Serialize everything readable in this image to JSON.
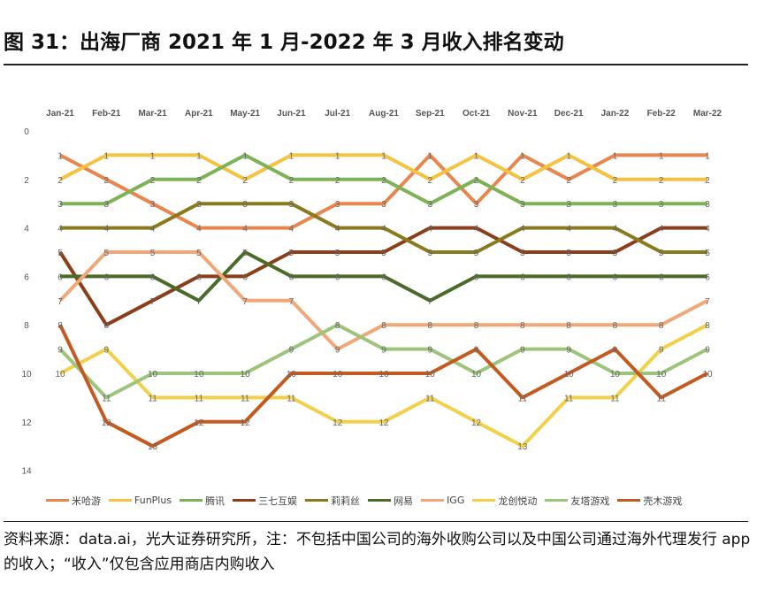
{
  "title": "图 31：出海厂商 2021 年 1 月-2022 年 3 月收入排名变动",
  "source": "资料来源：data.ai，光大证券研究所，注：不包括中国公司的海外收购公司以及中国公司通过海外代理发行 app 的收入；“收入”仅包含应用商店内购收入",
  "chart_data": {
    "type": "line",
    "title": "",
    "xlabel": "",
    "ylabel": "",
    "y_reversed": true,
    "ylim": [
      0,
      14
    ],
    "y_ticks": [
      0,
      2,
      4,
      6,
      8,
      10,
      12,
      14
    ],
    "x_axis_position": "top",
    "grid": false,
    "legend_position": "bottom",
    "data_labels": true,
    "categories": [
      "Jan-21",
      "Feb-21",
      "Mar-21",
      "Apr-21",
      "May-21",
      "Jun-21",
      "Jul-21",
      "Aug-21",
      "Sep-21",
      "Oct-21",
      "Nov-21",
      "Dec-21",
      "Jan-22",
      "Feb-22",
      "Mar-22"
    ],
    "series": [
      {
        "name": "米哈游",
        "color": "#E8864E",
        "values": [
          1,
          2,
          3,
          4,
          4,
          4,
          3,
          3,
          1,
          3,
          1,
          2,
          1,
          1,
          1
        ]
      },
      {
        "name": "FunPlus",
        "color": "#F5C242",
        "values": [
          2,
          1,
          1,
          1,
          2,
          1,
          1,
          1,
          2,
          1,
          2,
          1,
          2,
          2,
          2
        ]
      },
      {
        "name": "腾讯",
        "color": "#7EB257",
        "values": [
          3,
          3,
          2,
          2,
          1,
          2,
          2,
          2,
          3,
          2,
          3,
          3,
          3,
          3,
          3
        ]
      },
      {
        "name": "三七互娱",
        "color": "#8A3E1A",
        "values": [
          5,
          8,
          7,
          6,
          6,
          5,
          5,
          5,
          4,
          4,
          5,
          5,
          5,
          4,
          4
        ]
      },
      {
        "name": "莉莉丝",
        "color": "#8A7A1E",
        "values": [
          4,
          4,
          4,
          3,
          3,
          3,
          4,
          4,
          5,
          5,
          4,
          4,
          4,
          5,
          5
        ]
      },
      {
        "name": "网易",
        "color": "#4A6B2A",
        "values": [
          6,
          6,
          6,
          7,
          5,
          6,
          6,
          6,
          7,
          6,
          6,
          6,
          6,
          6,
          6
        ]
      },
      {
        "name": "IGG",
        "color": "#F0A878",
        "values": [
          7,
          5,
          5,
          5,
          7,
          7,
          9,
          8,
          8,
          8,
          8,
          8,
          8,
          8,
          7
        ]
      },
      {
        "name": "龙创悦动",
        "color": "#F2D04A",
        "values": [
          10,
          9,
          11,
          11,
          11,
          11,
          12,
          12,
          11,
          12,
          13,
          11,
          11,
          9,
          8
        ]
      },
      {
        "name": "友塔游戏",
        "color": "#9CC47A",
        "values": [
          9,
          11,
          10,
          10,
          10,
          9,
          8,
          9,
          9,
          10,
          9,
          9,
          10,
          10,
          9
        ]
      },
      {
        "name": "壳木游戏",
        "color": "#C45A20",
        "values": [
          8,
          12,
          13,
          12,
          12,
          10,
          10,
          10,
          10,
          9,
          11,
          10,
          9,
          11,
          10
        ]
      }
    ]
  }
}
